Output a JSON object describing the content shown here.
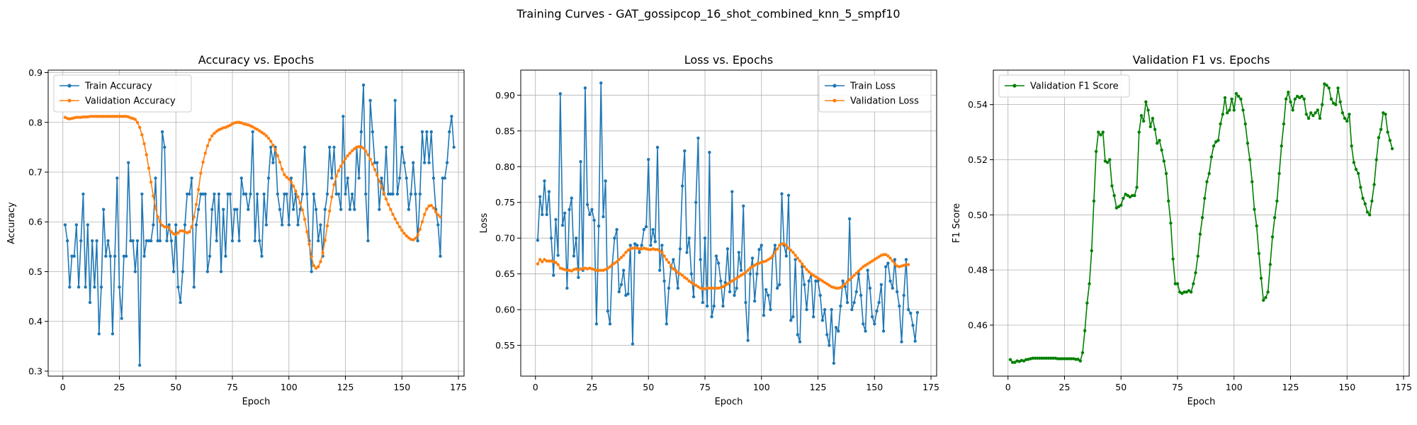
{
  "figure": {
    "suptitle": "Training Curves - GAT_gossipcop_16_shot_combined_knn_5_smpf10"
  },
  "colors": {
    "train": "#1f77b4",
    "val": "#ff7f0e",
    "f1": "#008000",
    "grid": "#b0b0b0"
  },
  "chart_data": [
    {
      "type": "line",
      "title": "Accuracy vs. Epochs",
      "xlabel": "Epoch",
      "ylabel": "Accuracy",
      "xlim": [
        -6.5,
        177.5
      ],
      "ylim": [
        0.29,
        0.905
      ],
      "xticks": [
        0,
        25,
        50,
        75,
        100,
        125,
        150,
        175
      ],
      "yticks": [
        0.3,
        0.4,
        0.5,
        0.6,
        0.7,
        0.8,
        0.9
      ],
      "ytick_labels": [
        "0.3",
        "0.4",
        "0.5",
        "0.6",
        "0.7",
        "0.8",
        "0.9"
      ],
      "grid": true,
      "legend_position": "upper-left",
      "series": [
        {
          "name": "Train Accuracy",
          "color": "#1f77b4",
          "x_start": 1,
          "values": [
            0.594,
            0.562,
            0.469,
            0.531,
            0.531,
            0.594,
            0.469,
            0.562,
            0.656,
            0.469,
            0.594,
            0.438,
            0.562,
            0.469,
            0.562,
            0.375,
            0.469,
            0.625,
            0.531,
            0.562,
            0.531,
            0.375,
            0.531,
            0.688,
            0.469,
            0.406,
            0.531,
            0.531,
            0.719,
            0.562,
            0.562,
            0.5,
            0.562,
            0.312,
            0.656,
            0.531,
            0.562,
            0.562,
            0.562,
            0.594,
            0.688,
            0.562,
            0.562,
            0.781,
            0.75,
            0.562,
            0.594,
            0.562,
            0.5,
            0.594,
            0.469,
            0.438,
            0.5,
            0.594,
            0.656,
            0.656,
            0.688,
            0.469,
            0.594,
            0.625,
            0.656,
            0.656,
            0.656,
            0.5,
            0.531,
            0.625,
            0.656,
            0.562,
            0.656,
            0.5,
            0.625,
            0.531,
            0.656,
            0.656,
            0.562,
            0.625,
            0.625,
            0.562,
            0.688,
            0.656,
            0.656,
            0.625,
            0.656,
            0.781,
            0.562,
            0.656,
            0.562,
            0.531,
            0.656,
            0.594,
            0.688,
            0.75,
            0.719,
            0.75,
            0.656,
            0.625,
            0.594,
            0.656,
            0.656,
            0.594,
            0.688,
            0.625,
            0.656,
            0.594,
            0.625,
            0.656,
            0.75,
            0.656,
            0.562,
            0.5,
            0.656,
            0.625,
            0.562,
            0.594,
            0.531,
            0.625,
            0.656,
            0.75,
            0.688,
            0.75,
            0.656,
            0.656,
            0.625,
            0.812,
            0.656,
            0.688,
            0.625,
            0.656,
            0.625,
            0.75,
            0.688,
            0.781,
            0.875,
            0.656,
            0.562,
            0.844,
            0.781,
            0.719,
            0.719,
            0.625,
            0.688,
            0.656,
            0.75,
            0.656,
            0.656,
            0.656,
            0.844,
            0.656,
            0.688,
            0.75,
            0.719,
            0.688,
            0.625,
            0.656,
            0.719,
            0.656,
            0.562,
            0.656,
            0.781,
            0.719,
            0.781,
            0.719,
            0.781,
            0.688,
            0.625,
            0.594,
            0.531,
            0.688,
            0.688,
            0.719,
            0.781,
            0.812,
            0.75
          ]
        },
        {
          "name": "Validation Accuracy",
          "color": "#ff7f0e",
          "x_start": 1,
          "values": [
            0.81,
            0.808,
            0.807,
            0.808,
            0.809,
            0.81,
            0.81,
            0.81,
            0.811,
            0.811,
            0.811,
            0.812,
            0.812,
            0.812,
            0.812,
            0.812,
            0.812,
            0.812,
            0.812,
            0.812,
            0.812,
            0.812,
            0.812,
            0.812,
            0.812,
            0.812,
            0.812,
            0.812,
            0.811,
            0.809,
            0.808,
            0.806,
            0.8,
            0.79,
            0.775,
            0.757,
            0.735,
            0.708,
            0.68,
            0.652,
            0.628,
            0.61,
            0.6,
            0.593,
            0.59,
            0.59,
            0.588,
            0.58,
            0.576,
            0.575,
            0.578,
            0.582,
            0.582,
            0.58,
            0.578,
            0.58,
            0.59,
            0.61,
            0.635,
            0.665,
            0.698,
            0.72,
            0.738,
            0.753,
            0.765,
            0.773,
            0.778,
            0.782,
            0.785,
            0.787,
            0.789,
            0.79,
            0.792,
            0.794,
            0.797,
            0.799,
            0.8,
            0.8,
            0.799,
            0.797,
            0.796,
            0.795,
            0.793,
            0.791,
            0.788,
            0.786,
            0.783,
            0.78,
            0.777,
            0.773,
            0.768,
            0.762,
            0.754,
            0.745,
            0.733,
            0.72,
            0.706,
            0.695,
            0.69,
            0.686,
            0.68,
            0.672,
            0.662,
            0.65,
            0.638,
            0.624,
            0.605,
            0.58,
            0.555,
            0.53,
            0.512,
            0.507,
            0.51,
            0.52,
            0.538,
            0.563,
            0.592,
            0.622,
            0.65,
            0.675,
            0.692,
            0.703,
            0.712,
            0.72,
            0.727,
            0.733,
            0.738,
            0.743,
            0.747,
            0.75,
            0.751,
            0.751,
            0.748,
            0.742,
            0.735,
            0.726,
            0.716,
            0.705,
            0.694,
            0.682,
            0.67,
            0.658,
            0.646,
            0.635,
            0.625,
            0.615,
            0.606,
            0.598,
            0.59,
            0.583,
            0.577,
            0.572,
            0.568,
            0.565,
            0.564,
            0.567,
            0.574,
            0.585,
            0.6,
            0.615,
            0.626,
            0.632,
            0.633,
            0.628,
            0.62,
            0.614,
            0.61
          ]
        }
      ]
    },
    {
      "type": "line",
      "title": "Loss vs. Epochs",
      "xlabel": "Epoch",
      "ylabel": "Loss",
      "xlim": [
        -6.5,
        177.5
      ],
      "ylim": [
        0.507,
        0.935
      ],
      "xticks": [
        0,
        25,
        50,
        75,
        100,
        125,
        150,
        175
      ],
      "yticks": [
        0.55,
        0.6,
        0.65,
        0.7,
        0.75,
        0.8,
        0.85,
        0.9
      ],
      "ytick_labels": [
        "0.55",
        "0.60",
        "0.65",
        "0.70",
        "0.75",
        "0.80",
        "0.85",
        "0.90"
      ],
      "grid": true,
      "legend_position": "upper-right",
      "series": [
        {
          "name": "Train Loss",
          "color": "#1f77b4",
          "x_start": 1,
          "values": [
            0.697,
            0.758,
            0.733,
            0.78,
            0.733,
            0.765,
            0.7,
            0.648,
            0.726,
            0.676,
            0.902,
            0.718,
            0.735,
            0.63,
            0.74,
            0.756,
            0.675,
            0.7,
            0.645,
            0.807,
            0.655,
            0.91,
            0.747,
            0.733,
            0.74,
            0.725,
            0.58,
            0.717,
            0.917,
            0.73,
            0.78,
            0.598,
            0.58,
            0.663,
            0.7,
            0.712,
            0.625,
            0.635,
            0.655,
            0.62,
            0.622,
            0.69,
            0.552,
            0.692,
            0.69,
            0.68,
            0.69,
            0.712,
            0.716,
            0.81,
            0.69,
            0.712,
            0.695,
            0.827,
            0.655,
            0.69,
            0.64,
            0.58,
            0.63,
            0.66,
            0.67,
            0.655,
            0.63,
            0.685,
            0.773,
            0.822,
            0.68,
            0.7,
            0.65,
            0.618,
            0.75,
            0.84,
            0.67,
            0.61,
            0.7,
            0.605,
            0.82,
            0.59,
            0.605,
            0.675,
            0.665,
            0.64,
            0.605,
            0.638,
            0.685,
            0.625,
            0.765,
            0.62,
            0.63,
            0.68,
            0.655,
            0.745,
            0.61,
            0.557,
            0.65,
            0.672,
            0.612,
            0.65,
            0.684,
            0.69,
            0.592,
            0.628,
            0.62,
            0.6,
            0.675,
            0.69,
            0.63,
            0.635,
            0.762,
            0.69,
            0.675,
            0.76,
            0.585,
            0.59,
            0.67,
            0.565,
            0.555,
            0.66,
            0.635,
            0.6,
            0.64,
            0.65,
            0.59,
            0.64,
            0.64,
            0.62,
            0.585,
            0.6,
            0.565,
            0.55,
            0.6,
            0.525,
            0.575,
            0.57,
            0.605,
            0.64,
            0.632,
            0.61,
            0.727,
            0.6,
            0.61,
            0.625,
            0.65,
            0.62,
            0.58,
            0.57,
            0.655,
            0.63,
            0.59,
            0.58,
            0.598,
            0.61,
            0.635,
            0.57,
            0.66,
            0.665,
            0.64,
            0.63,
            0.67,
            0.625,
            0.605,
            0.555,
            0.62,
            0.67,
            0.6,
            0.595,
            0.578,
            0.556,
            0.596
          ]
        },
        {
          "name": "Validation Loss",
          "color": "#ff7f0e",
          "x_start": 1,
          "values": [
            0.664,
            0.67,
            0.667,
            0.67,
            0.668,
            0.668,
            0.668,
            0.667,
            0.666,
            0.663,
            0.658,
            0.657,
            0.656,
            0.655,
            0.655,
            0.654,
            0.656,
            0.657,
            0.655,
            0.657,
            0.657,
            0.658,
            0.657,
            0.658,
            0.657,
            0.656,
            0.655,
            0.655,
            0.655,
            0.655,
            0.656,
            0.658,
            0.66,
            0.663,
            0.665,
            0.667,
            0.67,
            0.673,
            0.676,
            0.68,
            0.683,
            0.685,
            0.686,
            0.686,
            0.686,
            0.685,
            0.685,
            0.686,
            0.685,
            0.684,
            0.684,
            0.685,
            0.684,
            0.684,
            0.682,
            0.68,
            0.675,
            0.67,
            0.666,
            0.661,
            0.657,
            0.655,
            0.652,
            0.65,
            0.648,
            0.645,
            0.643,
            0.64,
            0.638,
            0.636,
            0.634,
            0.632,
            0.63,
            0.629,
            0.629,
            0.63,
            0.63,
            0.63,
            0.63,
            0.63,
            0.63,
            0.631,
            0.632,
            0.634,
            0.636,
            0.638,
            0.64,
            0.642,
            0.644,
            0.646,
            0.648,
            0.65,
            0.652,
            0.655,
            0.658,
            0.66,
            0.662,
            0.664,
            0.665,
            0.666,
            0.667,
            0.668,
            0.67,
            0.672,
            0.675,
            0.68,
            0.685,
            0.69,
            0.692,
            0.692,
            0.69,
            0.686,
            0.683,
            0.68,
            0.676,
            0.672,
            0.668,
            0.664,
            0.66,
            0.656,
            0.653,
            0.65,
            0.648,
            0.646,
            0.644,
            0.642,
            0.64,
            0.638,
            0.636,
            0.634,
            0.632,
            0.631,
            0.63,
            0.63,
            0.631,
            0.633,
            0.636,
            0.639,
            0.642,
            0.645,
            0.648,
            0.651,
            0.654,
            0.657,
            0.66,
            0.662,
            0.664,
            0.666,
            0.668,
            0.67,
            0.672,
            0.674,
            0.676,
            0.677,
            0.677,
            0.675,
            0.672,
            0.668,
            0.664,
            0.661,
            0.66,
            0.661,
            0.662,
            0.663,
            0.663
          ]
        }
      ]
    },
    {
      "type": "line",
      "title": "Validation F1 vs. Epochs",
      "xlabel": "Epoch",
      "ylabel": "F1 Score",
      "xlim": [
        -6.5,
        177.5
      ],
      "ylim": [
        0.4415,
        0.5525
      ],
      "xticks": [
        0,
        25,
        50,
        75,
        100,
        125,
        150,
        175
      ],
      "yticks": [
        0.46,
        0.48,
        0.5,
        0.52,
        0.54
      ],
      "ytick_labels": [
        "0.46",
        "0.48",
        "0.50",
        "0.52",
        "0.54"
      ],
      "grid": true,
      "legend_position": "upper-left",
      "series": [
        {
          "name": "Validation F1 Score",
          "color": "#008000",
          "x_start": 1,
          "values": [
            0.4475,
            0.4465,
            0.4465,
            0.447,
            0.4468,
            0.4472,
            0.447,
            0.4475,
            0.4476,
            0.4478,
            0.448,
            0.448,
            0.448,
            0.448,
            0.448,
            0.448,
            0.448,
            0.448,
            0.448,
            0.448,
            0.448,
            0.4478,
            0.4478,
            0.4478,
            0.4478,
            0.4478,
            0.4478,
            0.4478,
            0.4478,
            0.4476,
            0.4476,
            0.447,
            0.45,
            0.458,
            0.468,
            0.475,
            0.487,
            0.505,
            0.523,
            0.53,
            0.529,
            0.53,
            0.5195,
            0.519,
            0.52,
            0.5105,
            0.507,
            0.5025,
            0.503,
            0.5035,
            0.506,
            0.5075,
            0.507,
            0.5065,
            0.507,
            0.507,
            0.51,
            0.53,
            0.536,
            0.534,
            0.541,
            0.538,
            0.532,
            0.535,
            0.531,
            0.526,
            0.527,
            0.5235,
            0.5195,
            0.515,
            0.505,
            0.497,
            0.484,
            0.475,
            0.475,
            0.472,
            0.4715,
            0.472,
            0.472,
            0.4725,
            0.472,
            0.475,
            0.479,
            0.485,
            0.493,
            0.499,
            0.506,
            0.512,
            0.515,
            0.521,
            0.525,
            0.5265,
            0.527,
            0.533,
            0.5365,
            0.5425,
            0.537,
            0.538,
            0.542,
            0.538,
            0.544,
            0.543,
            0.542,
            0.538,
            0.533,
            0.526,
            0.52,
            0.512,
            0.502,
            0.496,
            0.486,
            0.477,
            0.469,
            0.47,
            0.472,
            0.482,
            0.492,
            0.499,
            0.505,
            0.515,
            0.525,
            0.533,
            0.542,
            0.5445,
            0.541,
            0.538,
            0.542,
            0.543,
            0.5425,
            0.543,
            0.542,
            0.5365,
            0.535,
            0.537,
            0.536,
            0.537,
            0.538,
            0.535,
            0.54,
            0.5475,
            0.547,
            0.546,
            0.542,
            0.5405,
            0.54,
            0.546,
            0.541,
            0.537,
            0.535,
            0.534,
            0.5365,
            0.525,
            0.519,
            0.5165,
            0.515,
            0.51,
            0.506,
            0.504,
            0.501,
            0.5,
            0.505,
            0.511,
            0.52,
            0.528,
            0.531,
            0.537,
            0.5365,
            0.53,
            0.527,
            0.524
          ]
        }
      ]
    }
  ]
}
